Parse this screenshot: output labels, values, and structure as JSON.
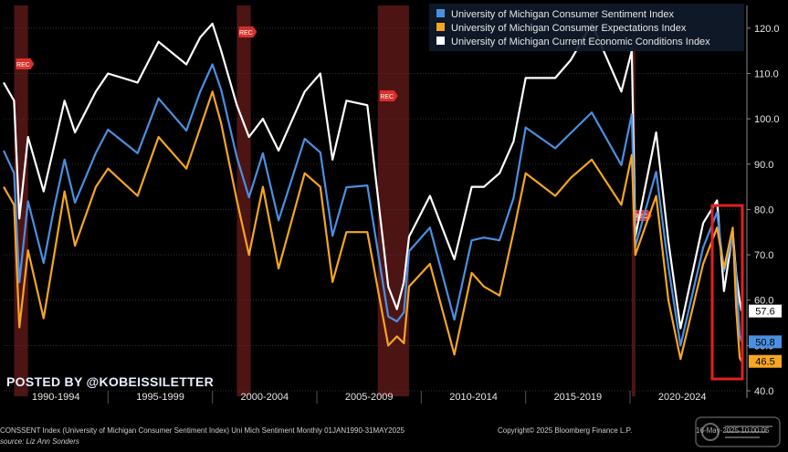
{
  "chart_data": {
    "type": "line",
    "x_start": "1990-01",
    "x_end": "2025-05",
    "x_tick_labels": [
      "1990-1994",
      "1995-1999",
      "2000-2004",
      "2005-2009",
      "2010-2014",
      "2015-2019",
      "2020-2024"
    ],
    "ylim": [
      40,
      125
    ],
    "y_ticks": [
      40,
      50,
      60,
      70,
      80,
      90,
      100,
      110,
      120
    ],
    "y_tick_labels": [
      "40.0",
      "50.0",
      "60.0",
      "70.0",
      "80.0",
      "90.0",
      "100.0",
      "110.0",
      "120.0"
    ],
    "legend_position": "top-center",
    "grid": true,
    "recession_label": "REC",
    "recessions": [
      [
        "1990-07",
        "1991-03"
      ],
      [
        "2001-03",
        "2001-11"
      ],
      [
        "2007-12",
        "2009-06"
      ],
      [
        "2020-02",
        "2020-04"
      ]
    ],
    "series": [
      {
        "name": "University of Michigan Consumer Sentiment Index",
        "color": "#4a90e2",
        "last_value_label": "50.8",
        "points": [
          [
            "1990-01",
            93.0
          ],
          [
            "1990-07",
            88.0
          ],
          [
            "1990-10",
            63.9
          ],
          [
            "1991-03",
            81.8
          ],
          [
            "1991-12",
            68.2
          ],
          [
            "1992-06",
            80.4
          ],
          [
            "1992-12",
            91.0
          ],
          [
            "1993-06",
            81.5
          ],
          [
            "1994-06",
            92.5
          ],
          [
            "1995-01",
            97.6
          ],
          [
            "1996-06",
            92.4
          ],
          [
            "1997-06",
            104.5
          ],
          [
            "1998-10",
            97.4
          ],
          [
            "1999-06",
            106.0
          ],
          [
            "2000-01",
            112.0
          ],
          [
            "2000-06",
            106.4
          ],
          [
            "2001-03",
            91.5
          ],
          [
            "2001-10",
            82.7
          ],
          [
            "2002-06",
            92.4
          ],
          [
            "2003-03",
            77.6
          ],
          [
            "2004-06",
            95.6
          ],
          [
            "2005-03",
            92.6
          ],
          [
            "2005-10",
            74.2
          ],
          [
            "2006-06",
            84.9
          ],
          [
            "2007-06",
            85.3
          ],
          [
            "2008-06",
            56.4
          ],
          [
            "2008-11",
            55.3
          ],
          [
            "2009-03",
            57.3
          ],
          [
            "2009-06",
            70.8
          ],
          [
            "2010-06",
            76.0
          ],
          [
            "2011-08",
            55.7
          ],
          [
            "2012-06",
            73.2
          ],
          [
            "2013-01",
            73.8
          ],
          [
            "2013-10",
            73.2
          ],
          [
            "2014-06",
            82.5
          ],
          [
            "2015-01",
            98.1
          ],
          [
            "2016-06",
            93.5
          ],
          [
            "2017-03",
            96.9
          ],
          [
            "2018-03",
            101.4
          ],
          [
            "2019-08",
            89.8
          ],
          [
            "2020-02",
            101.0
          ],
          [
            "2020-04",
            71.8
          ],
          [
            "2021-04",
            88.3
          ],
          [
            "2021-11",
            67.4
          ],
          [
            "2022-06",
            50.0
          ],
          [
            "2023-07",
            71.6
          ],
          [
            "2024-03",
            79.4
          ],
          [
            "2024-07",
            66.4
          ],
          [
            "2024-12",
            74.0
          ],
          [
            "2025-02",
            64.7
          ],
          [
            "2025-04",
            52.2
          ],
          [
            "2025-05",
            50.8
          ]
        ]
      },
      {
        "name": "University of Michigan Consumer Expectations Index",
        "color": "#f5a623",
        "last_value_label": "46.5",
        "points": [
          [
            "1990-01",
            85.0
          ],
          [
            "1990-07",
            81.0
          ],
          [
            "1990-10",
            54.0
          ],
          [
            "1991-03",
            71.0
          ],
          [
            "1991-12",
            56.0
          ],
          [
            "1992-06",
            70.0
          ],
          [
            "1992-12",
            84.0
          ],
          [
            "1993-06",
            72.0
          ],
          [
            "1994-06",
            85.0
          ],
          [
            "1995-01",
            89.0
          ],
          [
            "1996-06",
            83.0
          ],
          [
            "1997-06",
            96.0
          ],
          [
            "1998-10",
            89.0
          ],
          [
            "1999-06",
            98.0
          ],
          [
            "2000-01",
            106.0
          ],
          [
            "2000-06",
            99.0
          ],
          [
            "2001-03",
            82.0
          ],
          [
            "2001-10",
            70.0
          ],
          [
            "2002-06",
            85.0
          ],
          [
            "2003-03",
            67.0
          ],
          [
            "2004-06",
            88.0
          ],
          [
            "2005-03",
            85.0
          ],
          [
            "2005-10",
            64.0
          ],
          [
            "2006-06",
            75.0
          ],
          [
            "2007-06",
            75.0
          ],
          [
            "2008-06",
            50.0
          ],
          [
            "2008-11",
            52.0
          ],
          [
            "2009-03",
            50.5
          ],
          [
            "2009-06",
            63.0
          ],
          [
            "2010-06",
            68.0
          ],
          [
            "2011-08",
            48.0
          ],
          [
            "2012-06",
            66.0
          ],
          [
            "2013-01",
            63.0
          ],
          [
            "2013-10",
            61.0
          ],
          [
            "2014-06",
            75.0
          ],
          [
            "2015-01",
            88.0
          ],
          [
            "2016-06",
            83.0
          ],
          [
            "2017-03",
            87.0
          ],
          [
            "2018-03",
            91.0
          ],
          [
            "2019-08",
            81.0
          ],
          [
            "2020-02",
            92.0
          ],
          [
            "2020-04",
            70.0
          ],
          [
            "2021-04",
            83.0
          ],
          [
            "2021-11",
            60.0
          ],
          [
            "2022-06",
            47.0
          ],
          [
            "2023-07",
            68.0
          ],
          [
            "2024-03",
            76.0
          ],
          [
            "2024-07",
            67.0
          ],
          [
            "2024-12",
            76.0
          ],
          [
            "2025-02",
            58.0
          ],
          [
            "2025-04",
            47.3
          ],
          [
            "2025-05",
            46.5
          ]
        ]
      },
      {
        "name": "University of Michigan Current Economic Conditions Index",
        "color": "#ffffff",
        "last_value_label": "57.6",
        "points": [
          [
            "1990-01",
            108.0
          ],
          [
            "1990-07",
            104.0
          ],
          [
            "1990-10",
            78.0
          ],
          [
            "1991-03",
            96.0
          ],
          [
            "1991-12",
            84.0
          ],
          [
            "1992-06",
            94.0
          ],
          [
            "1992-12",
            104.0
          ],
          [
            "1993-06",
            97.0
          ],
          [
            "1994-06",
            106.0
          ],
          [
            "1995-01",
            110.0
          ],
          [
            "1996-06",
            108.0
          ],
          [
            "1997-06",
            117.0
          ],
          [
            "1998-10",
            112.0
          ],
          [
            "1999-06",
            118.0
          ],
          [
            "2000-01",
            121.0
          ],
          [
            "2000-06",
            115.0
          ],
          [
            "2001-03",
            103.0
          ],
          [
            "2001-10",
            96.0
          ],
          [
            "2002-06",
            100.0
          ],
          [
            "2003-03",
            93.0
          ],
          [
            "2004-06",
            106.0
          ],
          [
            "2005-03",
            110.0
          ],
          [
            "2005-10",
            91.0
          ],
          [
            "2006-06",
            104.0
          ],
          [
            "2007-06",
            103.0
          ],
          [
            "2008-06",
            63.0
          ],
          [
            "2008-11",
            58.0
          ],
          [
            "2009-03",
            64.0
          ],
          [
            "2009-06",
            74.0
          ],
          [
            "2010-06",
            83.0
          ],
          [
            "2011-08",
            69.0
          ],
          [
            "2012-06",
            85.0
          ],
          [
            "2013-01",
            85.0
          ],
          [
            "2013-10",
            88.0
          ],
          [
            "2014-06",
            95.0
          ],
          [
            "2015-01",
            109.0
          ],
          [
            "2016-06",
            109.0
          ],
          [
            "2017-03",
            113.0
          ],
          [
            "2018-03",
            121.0
          ],
          [
            "2019-08",
            106.0
          ],
          [
            "2020-02",
            115.0
          ],
          [
            "2020-04",
            74.0
          ],
          [
            "2021-04",
            97.0
          ],
          [
            "2021-11",
            73.0
          ],
          [
            "2022-06",
            53.8
          ],
          [
            "2023-07",
            77.0
          ],
          [
            "2024-03",
            82.0
          ],
          [
            "2024-07",
            62.0
          ],
          [
            "2024-12",
            75.0
          ],
          [
            "2025-02",
            65.7
          ],
          [
            "2025-04",
            59.8
          ],
          [
            "2025-05",
            57.6
          ]
        ]
      }
    ]
  },
  "footer": {
    "line1": "CONSSENT Index (University of Michigan Consumer Sentiment Index) Uni Mich Sentiment  Monthly 01JAN1990-31MAY2025",
    "line2": "source: Liz Ann Sonders",
    "copyright": "Copyright© 2025 Bloomberg Finance L.P.",
    "datetime": "16-May-2025 10:00:05"
  },
  "watermark": "POSTED BY @KOBEISSILETTER"
}
